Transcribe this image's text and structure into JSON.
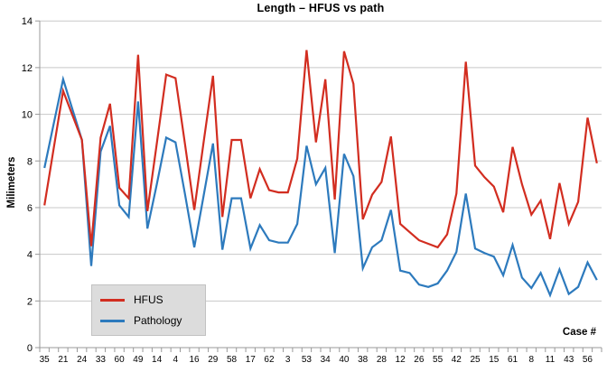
{
  "title": "Length – HFUS vs path",
  "y_axis": {
    "title": "Milimeters",
    "tick_labels": [
      "0",
      "2",
      "4",
      "6",
      "8",
      "10",
      "12",
      "14"
    ]
  },
  "x_axis": {
    "title": "Case #"
  },
  "legend": {
    "items": [
      {
        "label": "HFUS"
      },
      {
        "label": "Pathology"
      }
    ]
  },
  "colors": {
    "hfus": "#d22d20",
    "pathology": "#2d7abd",
    "gridline": "#c8c8c8",
    "axis": "#999999",
    "legend_bg": "#dcdcdc",
    "text": "#000000"
  },
  "chart_data": {
    "type": "line",
    "title": "Length – HFUS vs path",
    "xlabel": "Case #",
    "ylabel": "Milimeters",
    "ylim": [
      0,
      14
    ],
    "y_ticks": [
      0,
      2,
      4,
      6,
      8,
      10,
      12,
      14
    ],
    "grid": true,
    "legend_position": "bottom-left",
    "n_points": 60,
    "x_tick_labels_every_other_point": true,
    "categories": [
      35,
      21,
      24,
      33,
      60,
      49,
      14,
      4,
      16,
      29,
      58,
      17,
      62,
      3,
      53,
      34,
      40,
      38,
      28,
      12,
      26,
      55,
      42,
      25,
      15,
      61,
      8,
      11,
      43,
      56
    ],
    "series": [
      {
        "name": "HFUS",
        "color": "#d22d20",
        "values": [
          6.1,
          8.55,
          11.0,
          9.95,
          8.9,
          4.35,
          9.0,
          10.45,
          6.85,
          6.4,
          12.55,
          5.85,
          8.75,
          11.7,
          11.55,
          8.75,
          5.9,
          8.8,
          11.65,
          5.6,
          8.9,
          8.9,
          6.4,
          7.65,
          6.75,
          6.65,
          6.65,
          8.1,
          12.75,
          8.8,
          11.5,
          6.35,
          12.7,
          11.3,
          5.5,
          6.55,
          7.1,
          9.05,
          5.3,
          4.95,
          4.6,
          4.45,
          4.3,
          4.85,
          6.6,
          12.25,
          7.8,
          7.3,
          6.9,
          5.8,
          8.6,
          7.0,
          5.7,
          6.3,
          4.65,
          7.05,
          5.3,
          6.25,
          9.85,
          7.9
        ]
      },
      {
        "name": "Pathology",
        "color": "#2d7abd",
        "values": [
          7.7,
          9.6,
          11.5,
          10.2,
          8.9,
          3.5,
          8.4,
          9.5,
          6.1,
          5.6,
          10.55,
          5.1,
          7.0,
          9.0,
          8.8,
          6.6,
          4.3,
          6.5,
          8.75,
          4.2,
          6.4,
          6.4,
          4.25,
          5.25,
          4.6,
          4.5,
          4.5,
          5.3,
          8.65,
          7.0,
          7.7,
          4.05,
          8.3,
          7.35,
          3.4,
          4.3,
          4.6,
          5.9,
          3.3,
          3.2,
          2.7,
          2.6,
          2.75,
          3.3,
          4.1,
          6.6,
          4.25,
          4.05,
          3.9,
          3.1,
          4.4,
          3.0,
          2.55,
          3.2,
          2.25,
          3.35,
          2.3,
          2.6,
          3.65,
          2.9
        ]
      }
    ]
  }
}
